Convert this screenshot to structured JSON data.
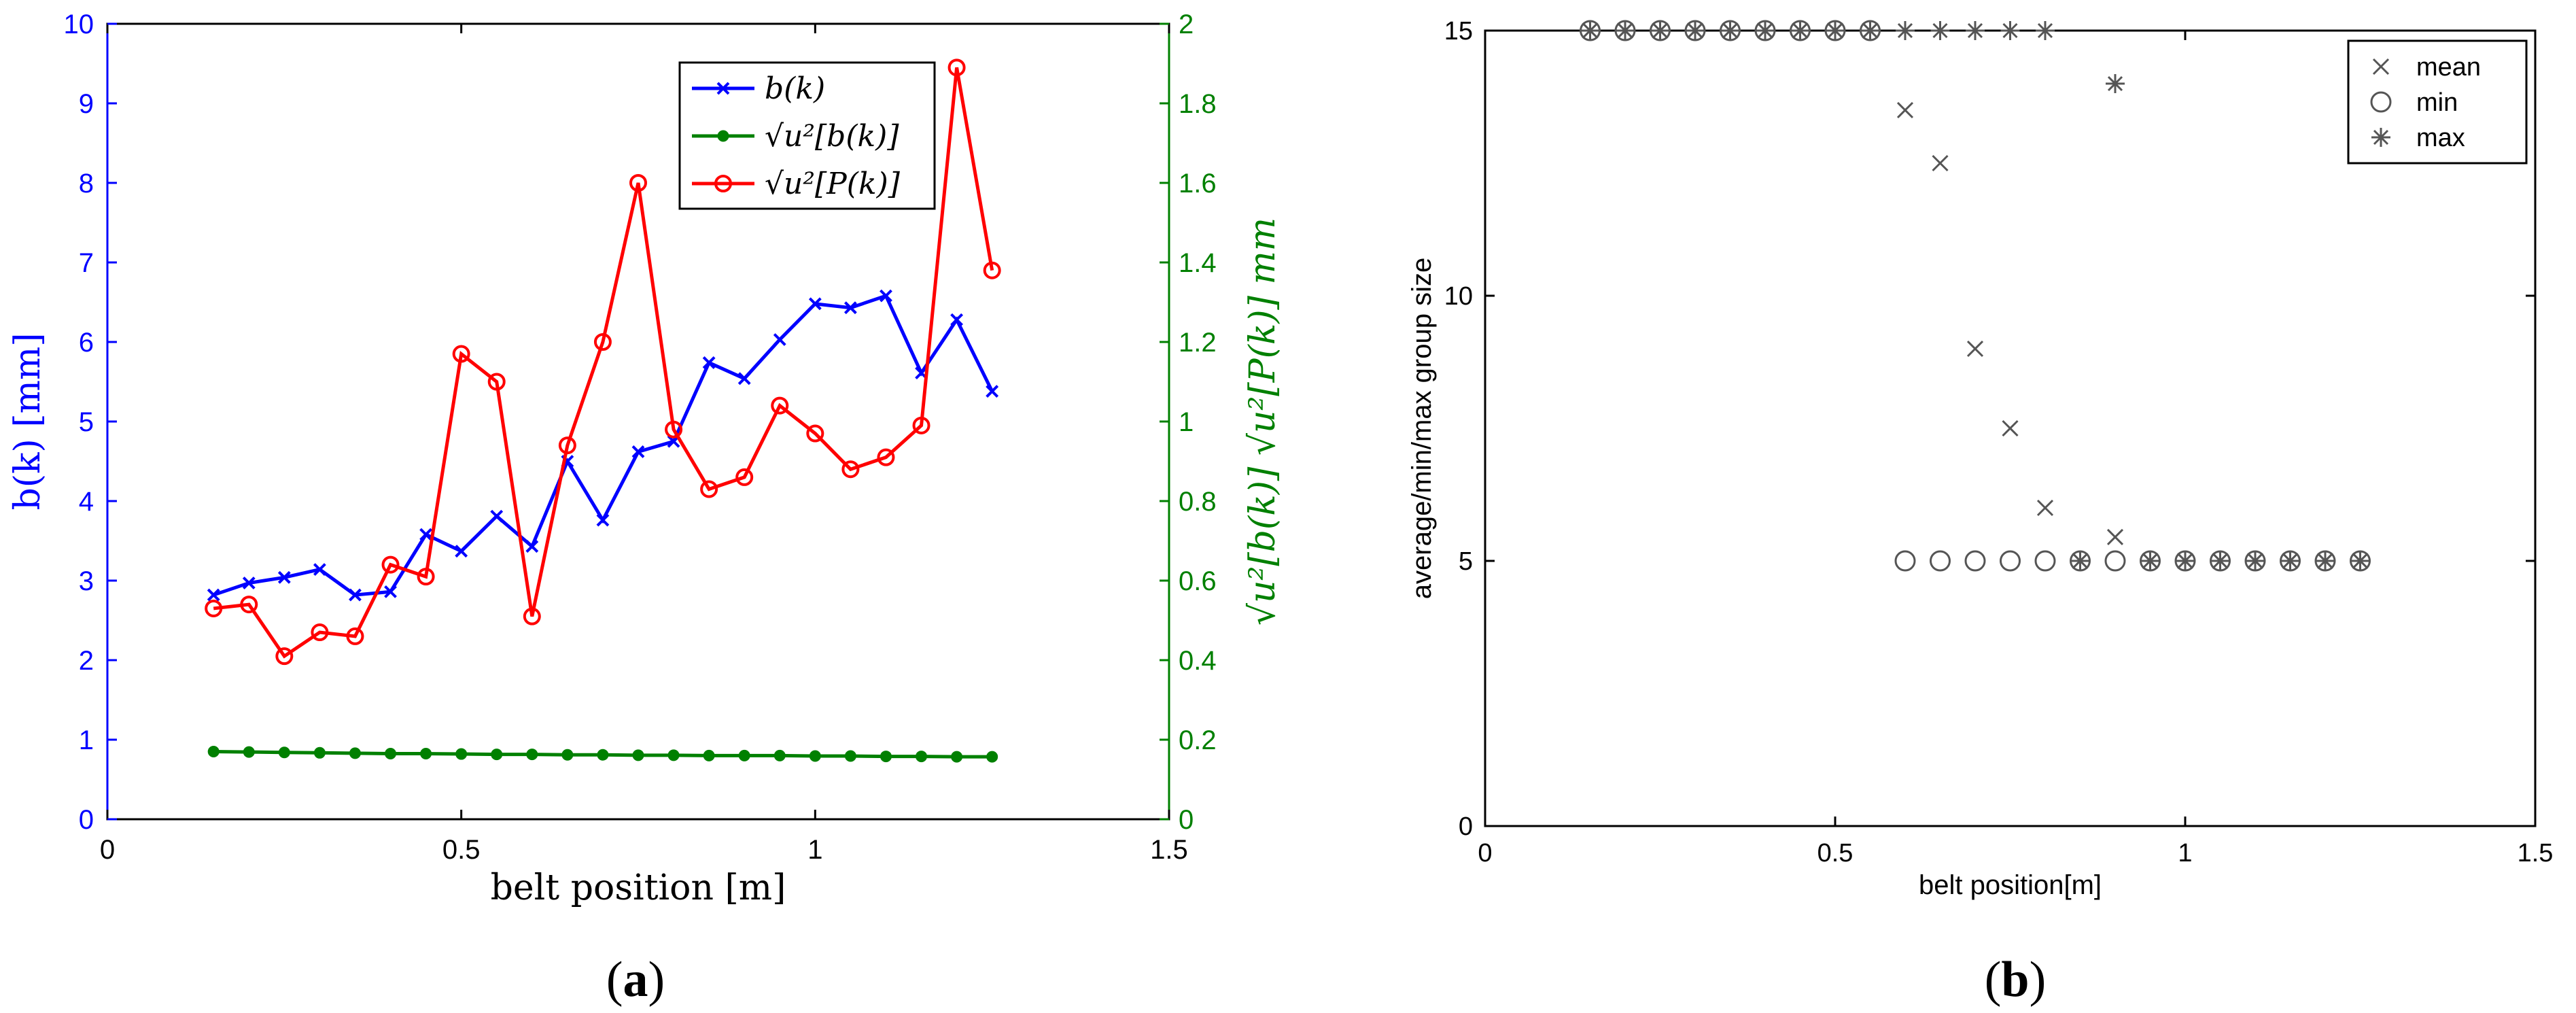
{
  "panel_labels": {
    "a": "(a)",
    "b": "(b)"
  },
  "chart_data": [
    {
      "type": "line",
      "panel": "(a)",
      "xlabel": "belt position [m]",
      "ylabel_left": "b(k) [mm]",
      "ylabel_right": "√u²[b(k)] √u²[P(k)] mm",
      "xlim": [
        0,
        1.5
      ],
      "ylim_left": [
        0,
        10
      ],
      "ylim_right": [
        0,
        2
      ],
      "x_ticks": [
        "0",
        "0.5",
        "1",
        "1.5"
      ],
      "y_ticks_left": [
        "0",
        "1",
        "2",
        "3",
        "4",
        "5",
        "6",
        "7",
        "8",
        "9",
        "10"
      ],
      "y_ticks_right": [
        "0",
        "0.2",
        "0.4",
        "0.6",
        "0.8",
        "1",
        "1.2",
        "1.4",
        "1.6",
        "1.8",
        "2"
      ],
      "legend_position": "top-right",
      "colors": {
        "blue": "#0000ff",
        "green": "#008000",
        "red": "#ff0000",
        "left_axis": "#0000ff",
        "right_axis": "#008000"
      },
      "series": [
        {
          "name": "b(k)",
          "axis": "left",
          "color": "#0000ff",
          "marker": "x",
          "x": [
            0.15,
            0.2,
            0.25,
            0.3,
            0.35,
            0.4,
            0.45,
            0.5,
            0.55,
            0.6,
            0.65,
            0.7,
            0.75,
            0.8,
            0.85,
            0.9,
            0.95,
            1.0,
            1.05,
            1.1,
            1.15,
            1.2,
            1.25
          ],
          "values": [
            2.82,
            2.97,
            3.04,
            3.14,
            2.82,
            2.86,
            3.58,
            3.37,
            3.81,
            3.43,
            4.5,
            3.76,
            4.62,
            4.75,
            5.74,
            5.54,
            6.03,
            6.48,
            6.43,
            6.58,
            5.61,
            6.28,
            5.38
          ]
        },
        {
          "name": "√u²[b(k)]",
          "axis": "right",
          "color": "#008000",
          "marker": "dot",
          "x": [
            0.15,
            0.2,
            0.25,
            0.3,
            0.35,
            0.4,
            0.45,
            0.5,
            0.55,
            0.6,
            0.65,
            0.7,
            0.75,
            0.8,
            0.85,
            0.9,
            0.95,
            1.0,
            1.05,
            1.1,
            1.15,
            1.2,
            1.25
          ],
          "values": [
            0.17,
            0.169,
            0.168,
            0.167,
            0.166,
            0.165,
            0.165,
            0.164,
            0.163,
            0.163,
            0.162,
            0.162,
            0.161,
            0.161,
            0.16,
            0.16,
            0.16,
            0.159,
            0.159,
            0.158,
            0.158,
            0.157,
            0.157
          ]
        },
        {
          "name": "√u²[P(k)]",
          "axis": "right",
          "color": "#ff0000",
          "marker": "circle",
          "x": [
            0.15,
            0.2,
            0.25,
            0.3,
            0.35,
            0.4,
            0.45,
            0.5,
            0.55,
            0.6,
            0.65,
            0.7,
            0.75,
            0.8,
            0.85,
            0.9,
            0.95,
            1.0,
            1.05,
            1.1,
            1.15,
            1.2,
            1.25
          ],
          "values": [
            0.53,
            0.54,
            0.41,
            0.47,
            0.46,
            0.64,
            0.61,
            1.17,
            1.1,
            0.51,
            0.94,
            1.2,
            1.6,
            0.98,
            0.83,
            0.86,
            1.04,
            0.97,
            0.88,
            0.91,
            0.99,
            1.89,
            1.38
          ]
        }
      ]
    },
    {
      "type": "scatter",
      "panel": "(b)",
      "xlabel": "belt position[m]",
      "ylabel": "average/min/max group size",
      "xlim": [
        0,
        1.5
      ],
      "ylim": [
        0,
        15
      ],
      "x_ticks": [
        "0",
        "0.5",
        "1",
        "1.5"
      ],
      "y_ticks": [
        "0",
        "5",
        "10",
        "15"
      ],
      "legend_position": "top-right",
      "series": [
        {
          "name": "mean",
          "marker": "x",
          "x": [
            0.15,
            0.2,
            0.25,
            0.3,
            0.35,
            0.4,
            0.45,
            0.5,
            0.55,
            0.6,
            0.65,
            0.7,
            0.75,
            0.8,
            0.85,
            0.9,
            0.95,
            1.0,
            1.05,
            1.1,
            1.15,
            1.2,
            1.25
          ],
          "values": [
            15,
            15,
            15,
            15,
            15,
            15,
            15,
            15,
            15,
            13.5,
            12.5,
            9,
            7.5,
            6,
            5,
            5.45,
            5,
            5,
            5,
            5,
            5,
            5,
            5
          ]
        },
        {
          "name": "min",
          "marker": "circle",
          "x": [
            0.15,
            0.2,
            0.25,
            0.3,
            0.35,
            0.4,
            0.45,
            0.5,
            0.55,
            0.6,
            0.65,
            0.7,
            0.75,
            0.8,
            0.85,
            0.9,
            0.95,
            1.0,
            1.05,
            1.1,
            1.15,
            1.2,
            1.25
          ],
          "values": [
            15,
            15,
            15,
            15,
            15,
            15,
            15,
            15,
            15,
            5,
            5,
            5,
            5,
            5,
            5,
            5,
            5,
            5,
            5,
            5,
            5,
            5,
            5
          ]
        },
        {
          "name": "max",
          "marker": "asterisk",
          "x": [
            0.15,
            0.2,
            0.25,
            0.3,
            0.35,
            0.4,
            0.45,
            0.5,
            0.55,
            0.6,
            0.65,
            0.7,
            0.75,
            0.8,
            0.85,
            0.9,
            0.95,
            1.0,
            1.05,
            1.1,
            1.15,
            1.2,
            1.25
          ],
          "values": [
            15,
            15,
            15,
            15,
            15,
            15,
            15,
            15,
            15,
            15,
            15,
            15,
            15,
            15,
            5,
            14,
            5,
            5,
            5,
            5,
            5,
            5,
            5
          ]
        }
      ]
    }
  ]
}
